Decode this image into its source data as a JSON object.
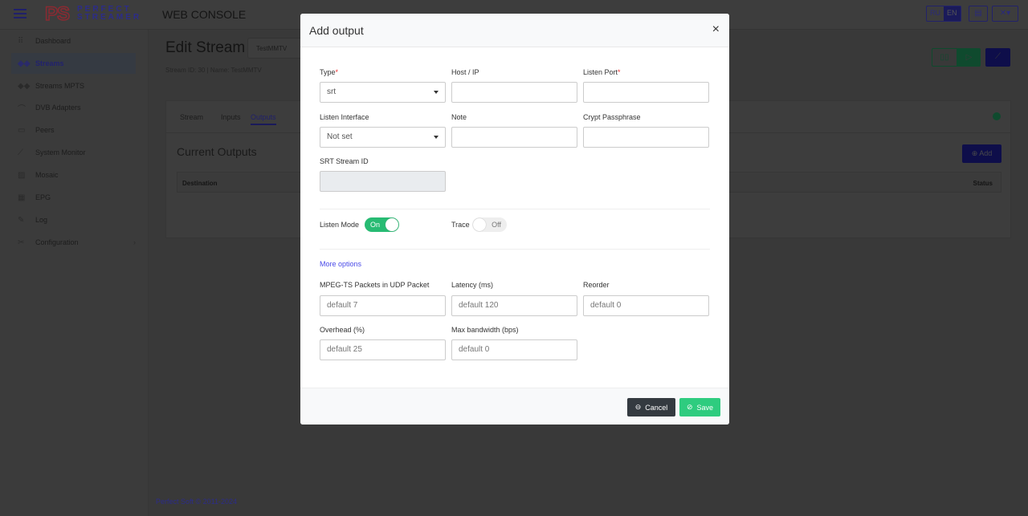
{
  "header": {
    "logo_letters": "PS",
    "logo_line1": "PERFECT",
    "logo_line2": "STREAMER",
    "app_title": "WEB CONSOLE",
    "lang_ru": "RU",
    "lang_en": "EN"
  },
  "sidebar": {
    "items": [
      {
        "label": "Dashboard",
        "icon": "grid-icon"
      },
      {
        "label": "Streams",
        "icon": "streams-icon",
        "active": true
      },
      {
        "label": "Streams MPTS",
        "icon": "streams-icon"
      },
      {
        "label": "DVB Adapters",
        "icon": "satellite-icon"
      },
      {
        "label": "Peers",
        "icon": "peers-icon"
      },
      {
        "label": "System Monitor",
        "icon": "chart-icon"
      },
      {
        "label": "Mosaic",
        "icon": "image-icon"
      },
      {
        "label": "EPG",
        "icon": "calendar-icon"
      },
      {
        "label": "Log",
        "icon": "edit-icon"
      },
      {
        "label": "Configuration",
        "icon": "tools-icon"
      }
    ]
  },
  "page": {
    "title": "Edit Stream",
    "stream_select": "TestMMTV",
    "subtitle": "Stream ID: 30 | Name: TestMMTV",
    "tabs": [
      "Stream",
      "Inputs",
      "Outputs"
    ],
    "active_tab": "Outputs",
    "section_title": "Current Outputs",
    "add_label": "Add",
    "columns": {
      "destination": "Destination",
      "status": "Status"
    },
    "status_color": "#27bb73"
  },
  "footer": "Perfect Soft © 2011-2024",
  "modal": {
    "title": "Add output",
    "type": {
      "label": "Type",
      "value": "srt"
    },
    "host": {
      "label": "Host / IP",
      "value": ""
    },
    "listen_port": {
      "label": "Listen Port",
      "value": ""
    },
    "listen_interface": {
      "label": "Listen Interface",
      "value": "Not set"
    },
    "note": {
      "label": "Note",
      "value": ""
    },
    "passphrase": {
      "label": "Crypt Passphrase",
      "value": ""
    },
    "srt_stream_id": {
      "label": "SRT Stream ID",
      "value": ""
    },
    "listen_mode": {
      "label": "Listen Mode",
      "state": "On"
    },
    "trace": {
      "label": "Trace",
      "state": "Off"
    },
    "more_options": "More options",
    "mpegts": {
      "label": "MPEG-TS Packets in UDP Packet",
      "placeholder": "default 7"
    },
    "latency": {
      "label": "Latency (ms)",
      "placeholder": "default 120"
    },
    "reorder": {
      "label": "Reorder",
      "placeholder": "default 0"
    },
    "overhead": {
      "label": "Overhead (%)",
      "placeholder": "default 25"
    },
    "max_bw": {
      "label": "Max bandwidth (bps)",
      "placeholder": "default 0"
    },
    "cancel": "Cancel",
    "save": "Save"
  }
}
